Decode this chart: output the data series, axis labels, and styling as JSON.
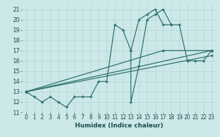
{
  "xlabel": "Humidex (Indice chaleur)",
  "xlim": [
    -0.5,
    23.5
  ],
  "ylim": [
    11,
    21.5
  ],
  "yticks": [
    11,
    12,
    13,
    14,
    15,
    16,
    17,
    18,
    19,
    20,
    21
  ],
  "xticks": [
    0,
    1,
    2,
    3,
    4,
    5,
    6,
    7,
    8,
    9,
    10,
    11,
    12,
    13,
    14,
    15,
    16,
    17,
    18,
    19,
    20,
    21,
    22,
    23
  ],
  "bg_color": "#cce8e8",
  "line_color": "#2d6e6e",
  "grid_color": "#b8d8d8",
  "lines": [
    {
      "x": [
        0,
        1,
        2,
        3,
        4,
        5,
        6,
        7,
        8,
        9,
        10,
        11,
        12,
        13,
        14,
        15,
        16,
        17,
        18,
        19,
        20,
        21,
        22,
        23
      ],
      "y": [
        13,
        12.5,
        12,
        12.5,
        12,
        11.5,
        12.5,
        12.5,
        12.5,
        14,
        14,
        19.5,
        19,
        17,
        20.0,
        20.5,
        21.0,
        19.5,
        19.5,
        null,
        null,
        null,
        null,
        null
      ]
    },
    {
      "x": [
        13,
        13,
        14,
        15,
        16,
        17,
        18,
        19,
        20,
        21,
        22,
        23
      ],
      "y": [
        17.0,
        12.0,
        15.5,
        20.0,
        20.5,
        21.0,
        19.5,
        19.5,
        16.0,
        16.0,
        16.0,
        17.0
      ]
    },
    {
      "x": [
        0,
        23
      ],
      "y": [
        13,
        17.0
      ]
    },
    {
      "x": [
        0,
        23
      ],
      "y": [
        13,
        16.5
      ]
    },
    {
      "x": [
        0,
        17,
        23
      ],
      "y": [
        13,
        17.0,
        17.0
      ]
    }
  ]
}
